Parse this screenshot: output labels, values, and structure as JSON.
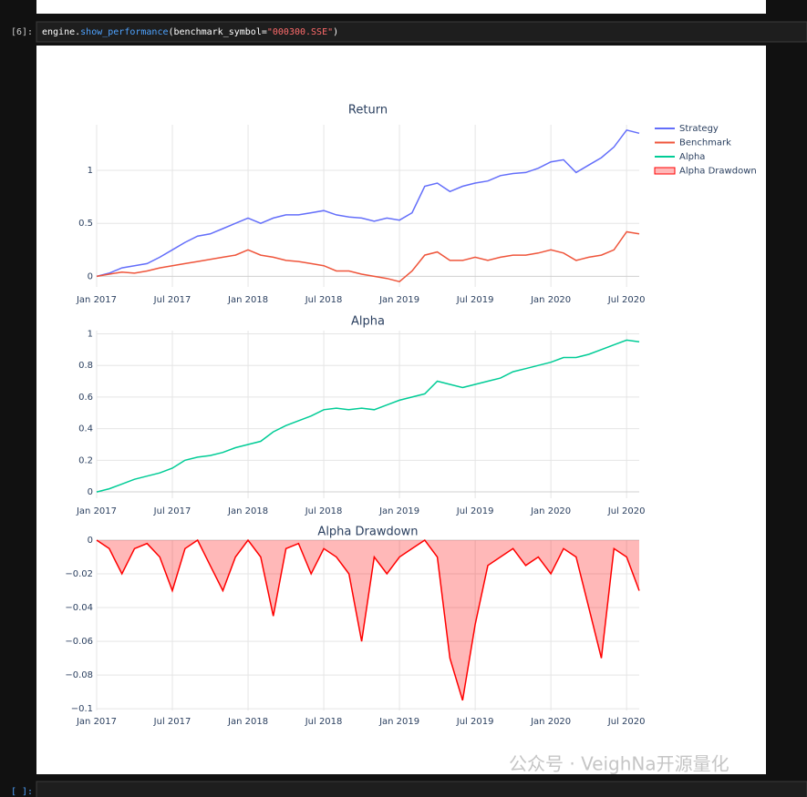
{
  "cell": {
    "prompt": "[6]:",
    "code": [
      "engine.",
      "show_performance",
      "(benchmark_symbol=",
      "\"000300.SSE\"",
      ")"
    ]
  },
  "next_cell": {
    "prompt": "[ ]:"
  },
  "watermark": "公众号 · VeighNa开源量化",
  "chart_data": [
    {
      "type": "line",
      "title": "Return",
      "x": [
        "2017-01",
        "2017-02",
        "2017-03",
        "2017-04",
        "2017-05",
        "2017-06",
        "2017-07",
        "2017-08",
        "2017-09",
        "2017-10",
        "2017-11",
        "2017-12",
        "2018-01",
        "2018-02",
        "2018-03",
        "2018-04",
        "2018-05",
        "2018-06",
        "2018-07",
        "2018-08",
        "2018-09",
        "2018-10",
        "2018-11",
        "2018-12",
        "2019-01",
        "2019-02",
        "2019-03",
        "2019-04",
        "2019-05",
        "2019-06",
        "2019-07",
        "2019-08",
        "2019-09",
        "2019-10",
        "2019-11",
        "2019-12",
        "2020-01",
        "2020-02",
        "2020-03",
        "2020-04",
        "2020-05",
        "2020-06",
        "2020-07",
        "2020-08"
      ],
      "series": [
        {
          "name": "Strategy",
          "color": "#636efa",
          "values": [
            0,
            0.03,
            0.08,
            0.1,
            0.12,
            0.18,
            0.25,
            0.32,
            0.38,
            0.4,
            0.45,
            0.5,
            0.55,
            0.5,
            0.55,
            0.58,
            0.58,
            0.6,
            0.62,
            0.58,
            0.56,
            0.55,
            0.52,
            0.55,
            0.53,
            0.6,
            0.85,
            0.88,
            0.8,
            0.85,
            0.88,
            0.9,
            0.95,
            0.97,
            0.98,
            1.02,
            1.08,
            1.1,
            0.98,
            1.05,
            1.12,
            1.22,
            1.38,
            1.35
          ]
        },
        {
          "name": "Benchmark",
          "color": "#ef553b",
          "values": [
            0,
            0.02,
            0.04,
            0.03,
            0.05,
            0.08,
            0.1,
            0.12,
            0.14,
            0.16,
            0.18,
            0.2,
            0.25,
            0.2,
            0.18,
            0.15,
            0.14,
            0.12,
            0.1,
            0.05,
            0.05,
            0.02,
            0,
            -0.02,
            -0.05,
            0.05,
            0.2,
            0.23,
            0.15,
            0.15,
            0.18,
            0.15,
            0.18,
            0.2,
            0.2,
            0.22,
            0.25,
            0.22,
            0.15,
            0.18,
            0.2,
            0.25,
            0.42,
            0.4
          ]
        }
      ],
      "xlim": [
        "2017-01",
        "2020-08"
      ],
      "xticks": [
        {
          "value": "2017-01",
          "label": "Jan 2017"
        },
        {
          "value": "2017-07",
          "label": "Jul 2017"
        },
        {
          "value": "2018-01",
          "label": "Jan 2018"
        },
        {
          "value": "2018-07",
          "label": "Jul 2018"
        },
        {
          "value": "2019-01",
          "label": "Jan 2019"
        },
        {
          "value": "2019-07",
          "label": "Jul 2019"
        },
        {
          "value": "2020-01",
          "label": "Jan 2020"
        },
        {
          "value": "2020-07",
          "label": "Jul 2020"
        }
      ],
      "ylim": [
        -0.1,
        1.43
      ],
      "yticks": [
        0,
        0.5,
        1
      ],
      "grid": true,
      "legend": "right"
    },
    {
      "type": "line",
      "title": "Alpha",
      "x": [
        "2017-01",
        "2017-02",
        "2017-03",
        "2017-04",
        "2017-05",
        "2017-06",
        "2017-07",
        "2017-08",
        "2017-09",
        "2017-10",
        "2017-11",
        "2017-12",
        "2018-01",
        "2018-02",
        "2018-03",
        "2018-04",
        "2018-05",
        "2018-06",
        "2018-07",
        "2018-08",
        "2018-09",
        "2018-10",
        "2018-11",
        "2018-12",
        "2019-01",
        "2019-02",
        "2019-03",
        "2019-04",
        "2019-05",
        "2019-06",
        "2019-07",
        "2019-08",
        "2019-09",
        "2019-10",
        "2019-11",
        "2019-12",
        "2020-01",
        "2020-02",
        "2020-03",
        "2020-04",
        "2020-05",
        "2020-06",
        "2020-07",
        "2020-08"
      ],
      "series": [
        {
          "name": "Alpha",
          "color": "#00cc96",
          "values": [
            0,
            0.02,
            0.05,
            0.08,
            0.1,
            0.12,
            0.15,
            0.2,
            0.22,
            0.23,
            0.25,
            0.28,
            0.3,
            0.32,
            0.38,
            0.42,
            0.45,
            0.48,
            0.52,
            0.53,
            0.52,
            0.53,
            0.52,
            0.55,
            0.58,
            0.6,
            0.62,
            0.7,
            0.68,
            0.66,
            0.68,
            0.7,
            0.72,
            0.76,
            0.78,
            0.8,
            0.82,
            0.85,
            0.85,
            0.87,
            0.9,
            0.93,
            0.96,
            0.95
          ]
        }
      ],
      "xlim": [
        "2017-01",
        "2020-08"
      ],
      "xticks": [
        {
          "value": "2017-01",
          "label": "Jan 2017"
        },
        {
          "value": "2017-07",
          "label": "Jul 2017"
        },
        {
          "value": "2018-01",
          "label": "Jan 2018"
        },
        {
          "value": "2018-07",
          "label": "Jul 2018"
        },
        {
          "value": "2019-01",
          "label": "Jan 2019"
        },
        {
          "value": "2019-07",
          "label": "Jul 2019"
        },
        {
          "value": "2020-01",
          "label": "Jan 2020"
        },
        {
          "value": "2020-07",
          "label": "Jul 2020"
        }
      ],
      "ylim": [
        -0.04,
        1.02
      ],
      "yticks": [
        0,
        0.2,
        0.4,
        0.6,
        0.8,
        1
      ],
      "grid": true
    },
    {
      "type": "area",
      "title": "Alpha Drawdown",
      "x": [
        "2017-01",
        "2017-02",
        "2017-03",
        "2017-04",
        "2017-05",
        "2017-06",
        "2017-07",
        "2017-08",
        "2017-09",
        "2017-10",
        "2017-11",
        "2017-12",
        "2018-01",
        "2018-02",
        "2018-03",
        "2018-04",
        "2018-05",
        "2018-06",
        "2018-07",
        "2018-08",
        "2018-09",
        "2018-10",
        "2018-11",
        "2018-12",
        "2019-01",
        "2019-02",
        "2019-03",
        "2019-04",
        "2019-05",
        "2019-06",
        "2019-07",
        "2019-08",
        "2019-09",
        "2019-10",
        "2019-11",
        "2019-12",
        "2020-01",
        "2020-02",
        "2020-03",
        "2020-04",
        "2020-05",
        "2020-06",
        "2020-07",
        "2020-08"
      ],
      "series": [
        {
          "name": "Alpha Drawdown",
          "color": "#ff0000",
          "fill": "rgba(255,0,0,0.28)",
          "values": [
            0,
            -0.005,
            -0.02,
            -0.005,
            -0.002,
            -0.01,
            -0.03,
            -0.005,
            0,
            -0.015,
            -0.03,
            -0.01,
            0,
            -0.01,
            -0.045,
            -0.005,
            -0.002,
            -0.02,
            -0.005,
            -0.01,
            -0.02,
            -0.06,
            -0.01,
            -0.02,
            -0.01,
            -0.005,
            0,
            -0.01,
            -0.07,
            -0.095,
            -0.05,
            -0.015,
            -0.01,
            -0.005,
            -0.015,
            -0.01,
            -0.02,
            -0.005,
            -0.01,
            -0.04,
            -0.07,
            -0.005,
            -0.01,
            -0.03
          ]
        }
      ],
      "xlim": [
        "2017-01",
        "2020-08"
      ],
      "xticks": [
        {
          "value": "2017-01",
          "label": "Jan 2017"
        },
        {
          "value": "2017-07",
          "label": "Jul 2017"
        },
        {
          "value": "2018-01",
          "label": "Jan 2018"
        },
        {
          "value": "2018-07",
          "label": "Jul 2018"
        },
        {
          "value": "2019-01",
          "label": "Jan 2019"
        },
        {
          "value": "2019-07",
          "label": "Jul 2019"
        },
        {
          "value": "2020-01",
          "label": "Jan 2020"
        },
        {
          "value": "2020-07",
          "label": "Jul 2020"
        }
      ],
      "ylim": [
        -0.101,
        0
      ],
      "yticks": [
        0,
        {
          "value": -0.02,
          "label": "−0.02"
        },
        {
          "value": -0.04,
          "label": "−0.04"
        },
        {
          "value": -0.06,
          "label": "−0.06"
        },
        {
          "value": -0.08,
          "label": "−0.08"
        },
        {
          "value": -0.1,
          "label": "−0.1"
        }
      ],
      "grid": true
    }
  ]
}
